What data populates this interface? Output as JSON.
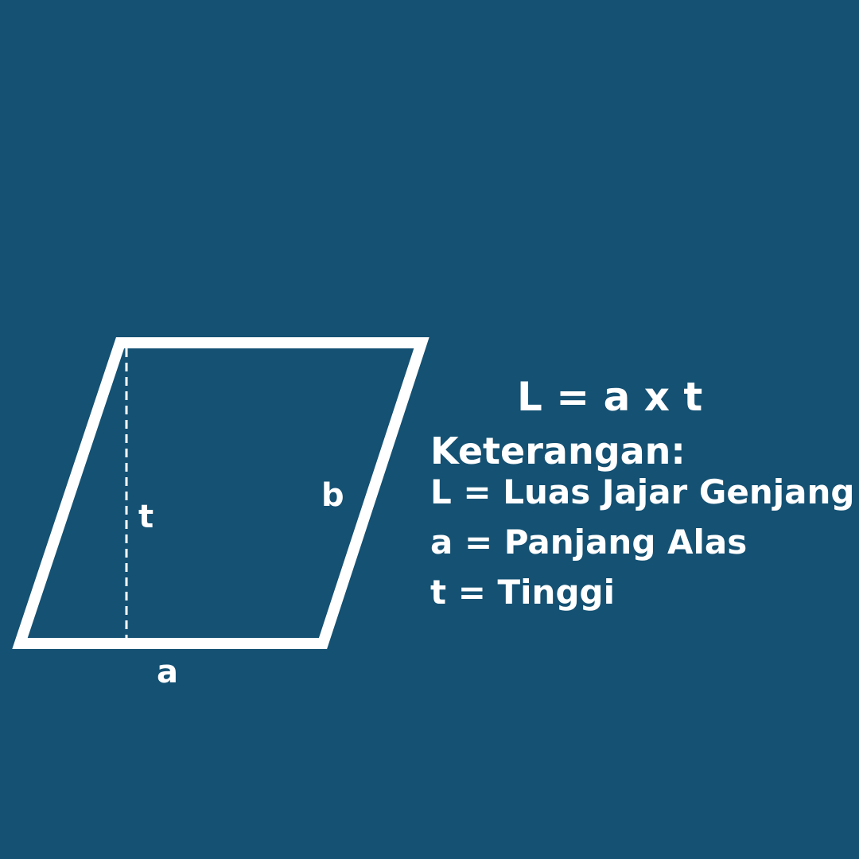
{
  "colors": {
    "background": "#145173",
    "foreground": "#ffffff"
  },
  "diagram": {
    "shape": "parallelogram",
    "labels": {
      "height": "t",
      "side": "b",
      "base": "a"
    }
  },
  "formula": "L = a x t",
  "legend": {
    "title": "Keterangan:",
    "lines": [
      "L = Luas Jajar Genjang",
      "a = Panjang Alas",
      "t = Tinggi"
    ]
  }
}
